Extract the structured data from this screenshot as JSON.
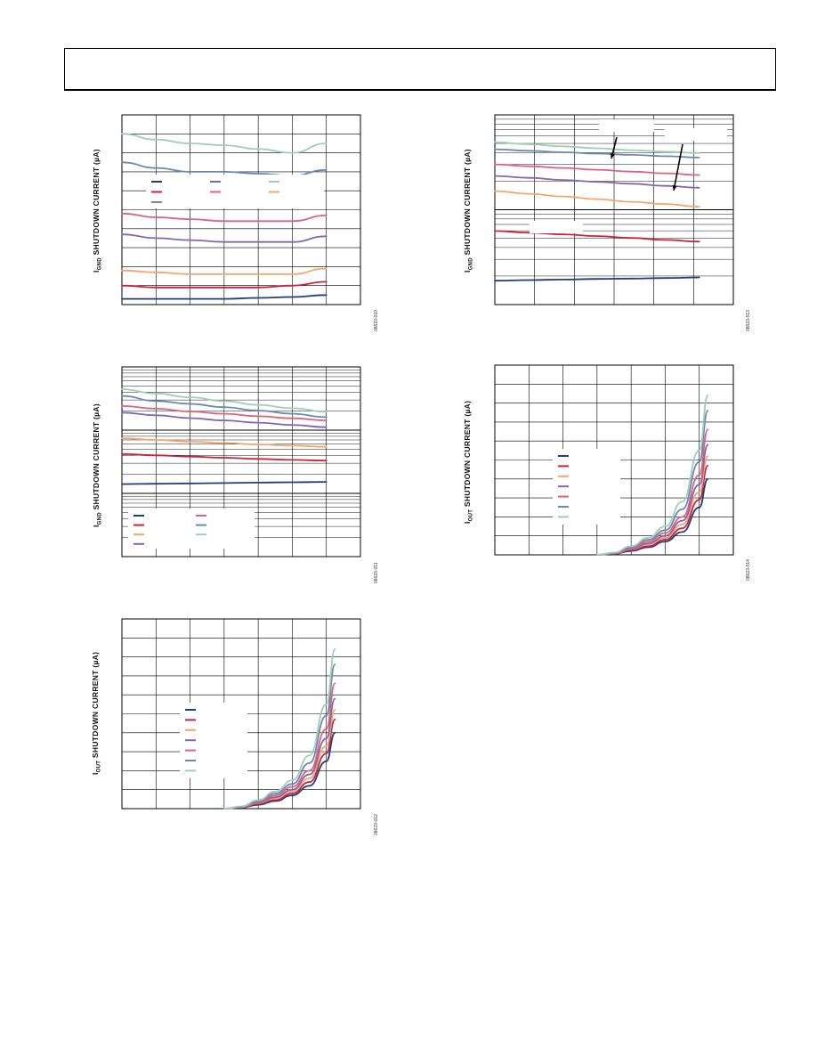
{
  "page": {
    "y_label_parts": {
      "gnd": [
        "I",
        "GND",
        " SHUTDOWN CURRENT (µA)"
      ],
      "out": [
        "I",
        "OUT",
        " SHUTDOWN CURRENT (µA)"
      ]
    }
  },
  "chart_data": [
    {
      "id": "fig10",
      "figure_id": "08623-010",
      "type": "line",
      "ylabel_kind": "gnd",
      "x": [
        0,
        1,
        2,
        3,
        4,
        5,
        6
      ],
      "ylim": [
        0,
        10
      ],
      "xlim": [
        0,
        7
      ],
      "grid": {
        "x_divisions": 7,
        "y_divisions": 10,
        "log": false
      },
      "series": [
        {
          "color": "#9ecfb4",
          "values": [
            9.0,
            8.7,
            8.5,
            8.4,
            8.2,
            8.0,
            8.5
          ]
        },
        {
          "color": "#6b88b0",
          "values": [
            7.5,
            7.2,
            7.0,
            7.0,
            6.9,
            6.8,
            7.1
          ]
        },
        {
          "color": "#e0607e",
          "values": [
            4.8,
            4.6,
            4.5,
            4.4,
            4.4,
            4.4,
            4.7
          ]
        },
        {
          "color": "#8266b0",
          "values": [
            3.7,
            3.5,
            3.4,
            3.3,
            3.3,
            3.3,
            3.6
          ]
        },
        {
          "color": "#f4a46c",
          "values": [
            1.8,
            1.7,
            1.6,
            1.6,
            1.6,
            1.6,
            1.9
          ]
        },
        {
          "color": "#c8223f",
          "values": [
            1.0,
            0.9,
            0.9,
            0.9,
            0.9,
            1.0,
            1.2
          ]
        },
        {
          "color": "#1f3f7a",
          "values": [
            0.3,
            0.3,
            0.3,
            0.3,
            0.35,
            0.4,
            0.5
          ]
        }
      ],
      "legend": {
        "placement": "center-left",
        "columns": 3,
        "swatches": [
          "#1f3f7a",
          "#8266b0",
          "#9ecfb4",
          "#c8223f",
          "#e0607e",
          "#f4a46c",
          "#6b88b0"
        ]
      }
    },
    {
      "id": "fig11",
      "figure_id": "08623-011",
      "type": "line",
      "ylabel_kind": "gnd",
      "x": [
        0,
        1,
        2,
        3,
        4,
        5,
        6
      ],
      "ylim": [
        0,
        100
      ],
      "xlim": [
        0,
        7
      ],
      "grid": {
        "x_divisions": 7,
        "y_log_decades": 3,
        "log": true
      },
      "series": [
        {
          "color": "#9ecfb4",
          "values": [
            88.2,
            86.0,
            84.0,
            82.0,
            80.0,
            78.2,
            76.4
          ]
        },
        {
          "color": "#6b88b0",
          "values": [
            84.7,
            82.0,
            80.5,
            78.8,
            77.0,
            75.3,
            73.5
          ]
        },
        {
          "color": "#e0607e",
          "values": [
            79.4,
            78.0,
            76.5,
            75.3,
            74.0,
            72.9,
            71.8
          ]
        },
        {
          "color": "#8266b0",
          "values": [
            75.9,
            74.5,
            73.0,
            71.8,
            70.6,
            69.4,
            68.2
          ]
        },
        {
          "color": "#f4a46c",
          "values": [
            62.4,
            61.5,
            60.6,
            59.9,
            59.1,
            58.5,
            57.9
          ]
        },
        {
          "color": "#c8223f",
          "values": [
            54.1,
            53.4,
            52.7,
            52.1,
            51.5,
            51.0,
            50.6
          ]
        },
        {
          "color": "#1f3f7a",
          "values": [
            38.2,
            38.4,
            38.6,
            38.8,
            39.0,
            39.2,
            39.4
          ]
        }
      ],
      "legend": {
        "placement": "bottom-left",
        "columns": 2,
        "swatches": [
          "#1f3f7a",
          "#c8223f",
          "#f4a46c",
          "#8266b0",
          "#e0607e",
          "#6b88b0",
          "#9ecfb4"
        ]
      }
    },
    {
      "id": "fig12",
      "figure_id": "08623-012",
      "type": "line",
      "ylabel_kind": "out",
      "x": [
        3.0,
        3.5,
        4.0,
        4.5,
        5.0,
        5.5,
        6.0,
        6.25
      ],
      "ylim": [
        0,
        10
      ],
      "xlim": [
        0,
        7
      ],
      "grid": {
        "x_divisions": 7,
        "y_divisions": 10,
        "log": false
      },
      "series": [
        {
          "color": "#1f3f7a",
          "values": [
            0,
            0.05,
            0.2,
            0.4,
            0.7,
            1.2,
            2.5,
            4.0
          ]
        },
        {
          "color": "#c8223f",
          "values": [
            0,
            0.06,
            0.25,
            0.45,
            0.8,
            1.4,
            2.9,
            4.7
          ]
        },
        {
          "color": "#f4a46c",
          "values": [
            0,
            0.07,
            0.3,
            0.55,
            0.9,
            1.6,
            3.3,
            5.2
          ]
        },
        {
          "color": "#8266b0",
          "values": [
            0,
            0.08,
            0.32,
            0.6,
            1.0,
            1.8,
            3.7,
            5.8
          ]
        },
        {
          "color": "#e0607e",
          "values": [
            0,
            0.09,
            0.35,
            0.7,
            1.15,
            2.0,
            4.2,
            6.6
          ]
        },
        {
          "color": "#6b88b0",
          "values": [
            0,
            0.1,
            0.4,
            0.8,
            1.3,
            2.4,
            4.9,
            7.6
          ]
        },
        {
          "color": "#9ecfb4",
          "values": [
            0,
            0.12,
            0.45,
            0.9,
            1.5,
            2.8,
            5.5,
            8.4
          ]
        }
      ],
      "legend": {
        "placement": "center-left",
        "columns": 1,
        "swatches": [
          "#1f3f7a",
          "#c8223f",
          "#f4a46c",
          "#8266b0",
          "#e0607e",
          "#6b88b0",
          "#9ecfb4"
        ]
      }
    },
    {
      "id": "fig13",
      "figure_id": "08623-013",
      "type": "line",
      "ylabel_kind": "gnd",
      "x": [
        0,
        1,
        2,
        3,
        4,
        5,
        6
      ],
      "ylim": [
        0,
        100
      ],
      "xlim": [
        0,
        7
      ],
      "grid": {
        "x_divisions": 6,
        "y_log_decades": 2,
        "log": true
      },
      "series": [
        {
          "color": "#9ecfb4",
          "values": [
            85.6,
            84.5,
            83.4,
            82.4,
            81.4,
            80.6,
            79.9
          ]
        },
        {
          "color": "#6b88b0",
          "values": [
            81.9,
            81.1,
            80.3,
            79.6,
            78.9,
            78.2,
            77.5
          ]
        },
        {
          "color": "#e0607e",
          "values": [
            73.9,
            72.9,
            72.0,
            71.1,
            70.1,
            69.2,
            68.3
          ]
        },
        {
          "color": "#8266b0",
          "values": [
            67.8,
            66.8,
            65.7,
            64.7,
            63.7,
            62.6,
            61.6
          ]
        },
        {
          "color": "#f4a46c",
          "values": [
            59.8,
            58.4,
            57.0,
            55.6,
            54.2,
            53.0,
            51.6
          ]
        },
        {
          "color": "#c8223f",
          "values": [
            38.8,
            37.9,
            37.0,
            36.1,
            35.1,
            34.1,
            33.2
          ]
        },
        {
          "color": "#1f3f7a",
          "values": [
            12.6,
            12.9,
            13.2,
            13.5,
            13.7,
            14.0,
            14.3
          ]
        }
      ],
      "legend": {
        "placement": "none",
        "columns": 0,
        "swatches": []
      },
      "annotation_boxes": 3,
      "arrows": 2
    },
    {
      "id": "fig14",
      "figure_id": "08623-014",
      "type": "line",
      "ylabel_kind": "out",
      "x": [
        3.0,
        3.5,
        4.0,
        4.5,
        5.0,
        5.5,
        6.0,
        6.25
      ],
      "ylim": [
        0,
        10
      ],
      "xlim": [
        0,
        7
      ],
      "grid": {
        "x_divisions": 7,
        "y_divisions": 10,
        "log": false
      },
      "series": [
        {
          "color": "#1f3f7a",
          "values": [
            0,
            0.05,
            0.2,
            0.4,
            0.7,
            1.2,
            2.5,
            4.0
          ]
        },
        {
          "color": "#c8223f",
          "values": [
            0,
            0.06,
            0.25,
            0.45,
            0.8,
            1.4,
            2.9,
            4.7
          ]
        },
        {
          "color": "#f4a46c",
          "values": [
            0,
            0.07,
            0.3,
            0.55,
            0.9,
            1.6,
            3.3,
            5.2
          ]
        },
        {
          "color": "#8266b0",
          "values": [
            0,
            0.08,
            0.32,
            0.6,
            1.0,
            1.8,
            3.7,
            5.8
          ]
        },
        {
          "color": "#e0607e",
          "values": [
            0,
            0.09,
            0.35,
            0.7,
            1.15,
            2.0,
            4.2,
            6.6
          ]
        },
        {
          "color": "#6b88b0",
          "values": [
            0,
            0.1,
            0.4,
            0.8,
            1.3,
            2.4,
            4.9,
            7.6
          ]
        },
        {
          "color": "#9ecfb4",
          "values": [
            0,
            0.12,
            0.45,
            0.9,
            1.5,
            2.8,
            5.5,
            8.4
          ]
        }
      ],
      "legend": {
        "placement": "center-left",
        "columns": 1,
        "swatches": [
          "#1f3f7a",
          "#c8223f",
          "#f4a46c",
          "#8266b0",
          "#e0607e",
          "#6b88b0",
          "#9ecfb4"
        ]
      }
    }
  ]
}
